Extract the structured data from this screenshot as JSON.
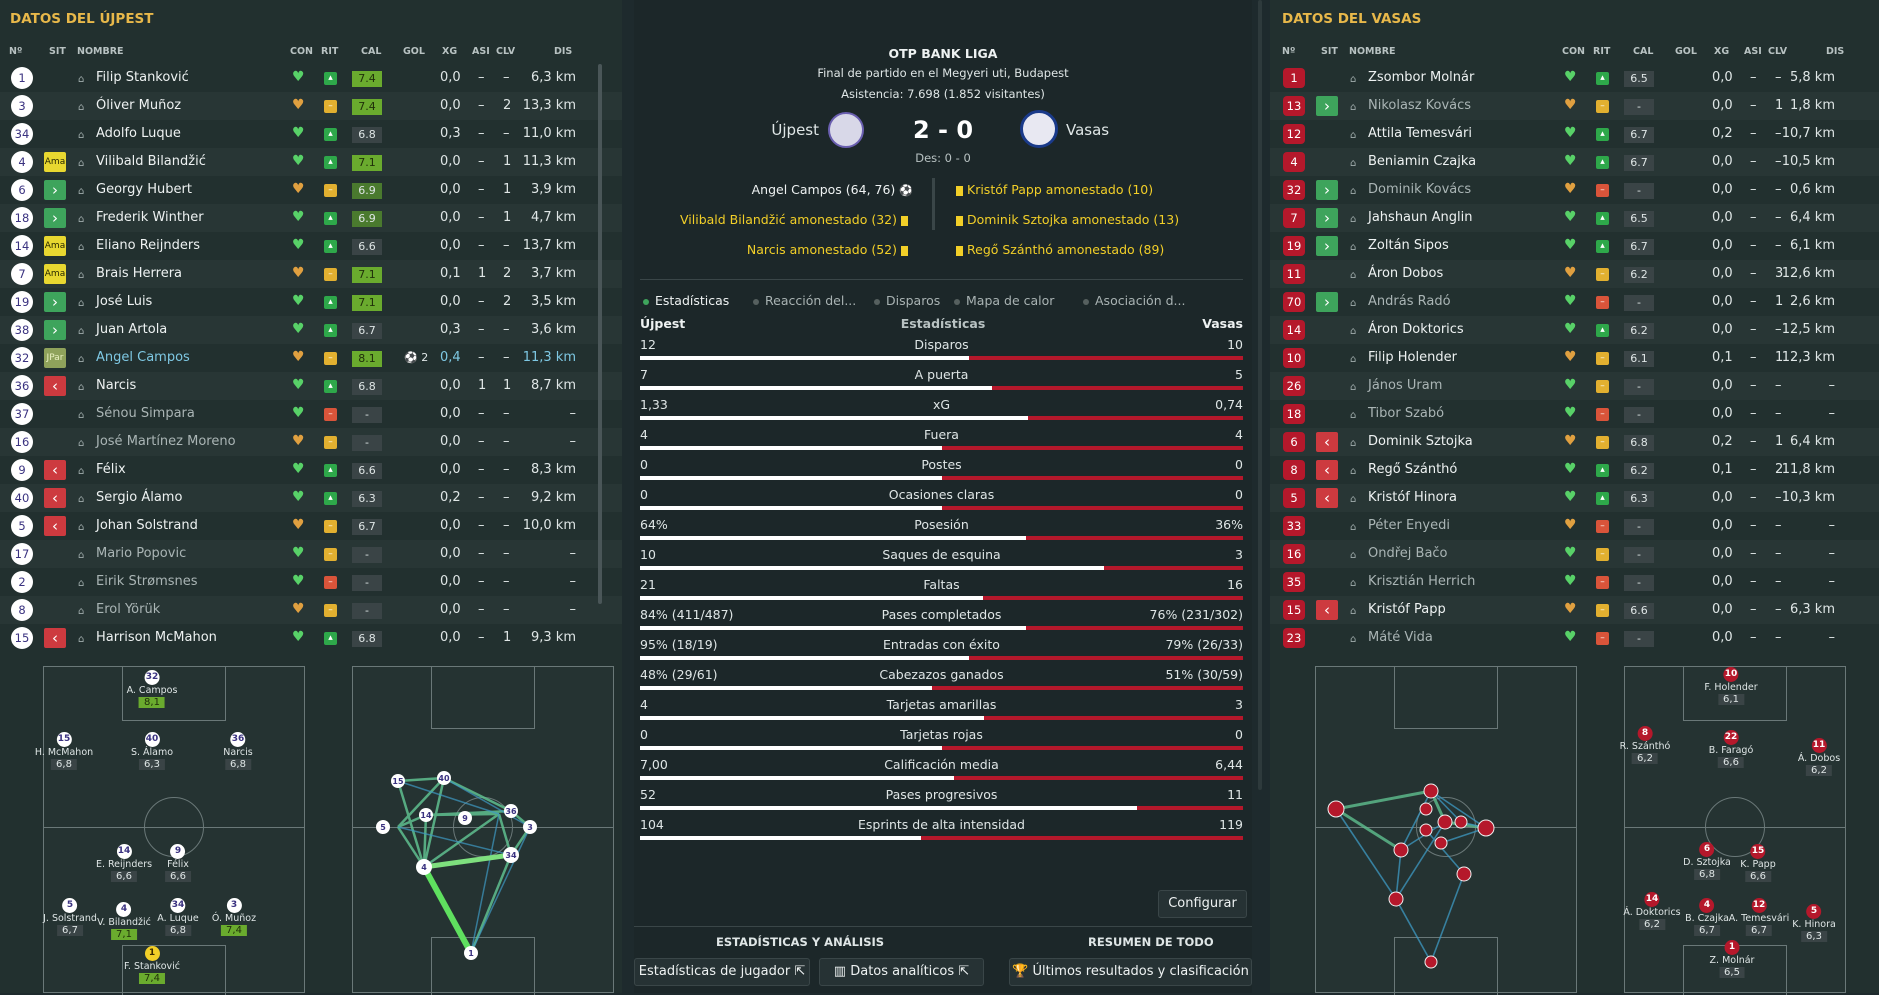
{
  "left": {
    "title": "DATOS DEL ÚJPEST",
    "headers": {
      "n": "Nº",
      "sit": "SIT",
      "nombre": "NOMBRE",
      "con": "CON",
      "rit": "RIT",
      "cal": "CAL",
      "gol": "GOL",
      "xg": "XG",
      "asi": "ASI",
      "clv": "CLV",
      "dis": "DIS"
    },
    "players": [
      {
        "n": "1",
        "sit": "",
        "name": "Filip Stanković",
        "cal": "7.4",
        "gol": "",
        "xg": "0,0",
        "asi": "–",
        "clv": "–",
        "dis": "6,3 km"
      },
      {
        "n": "3",
        "sit": "",
        "name": "Óliver Muñoz",
        "cal": "7.4",
        "gol": "",
        "xg": "0,0",
        "asi": "–",
        "clv": "2",
        "dis": "13,3 km"
      },
      {
        "n": "34",
        "sit": "",
        "name": "Adolfo Luque",
        "cal": "6.8",
        "gol": "",
        "xg": "0,3",
        "asi": "–",
        "clv": "–",
        "dis": "11,0 km"
      },
      {
        "n": "4",
        "sit": "Ama",
        "name": "Vilibald Bilandžić",
        "cal": "7.1",
        "gol": "",
        "xg": "0,0",
        "asi": "–",
        "clv": "1",
        "dis": "11,3 km"
      },
      {
        "n": "6",
        "sit": ">",
        "name": "Georgy Hubert",
        "cal": "6.9",
        "gol": "",
        "xg": "0,0",
        "asi": "–",
        "clv": "1",
        "dis": "3,9 km"
      },
      {
        "n": "18",
        "sit": ">",
        "name": "Frederik Winther",
        "cal": "6.9",
        "gol": "",
        "xg": "0,0",
        "asi": "–",
        "clv": "1",
        "dis": "4,7 km"
      },
      {
        "n": "14",
        "sit": "Ama",
        "name": "Eliano Reijnders",
        "cal": "6.6",
        "gol": "",
        "xg": "0,0",
        "asi": "–",
        "clv": "–",
        "dis": "13,7 km"
      },
      {
        "n": "7",
        "sit": "Ama",
        "name": "Brais Herrera",
        "cal": "7.1",
        "gol": "",
        "xg": "0,1",
        "asi": "1",
        "clv": "2",
        "dis": "3,7 km"
      },
      {
        "n": "19",
        "sit": ">",
        "name": "José Luis",
        "cal": "7.1",
        "gol": "",
        "xg": "0,0",
        "asi": "–",
        "clv": "2",
        "dis": "3,5 km"
      },
      {
        "n": "38",
        "sit": ">",
        "name": "Juan Artola",
        "cal": "6.7",
        "gol": "",
        "xg": "0,3",
        "asi": "–",
        "clv": "–",
        "dis": "3,6 km"
      },
      {
        "n": "32",
        "sit": "JPar",
        "name": "Angel Campos",
        "cal": "8.1",
        "gol": "2",
        "xg": "0,4",
        "asi": "–",
        "clv": "–",
        "dis": "11,3 km"
      },
      {
        "n": "36",
        "sit": "<",
        "name": "Narcis",
        "cal": "6.8",
        "gol": "",
        "xg": "0,0",
        "asi": "1",
        "clv": "1",
        "dis": "8,7 km"
      },
      {
        "n": "37",
        "sit": "",
        "name": "Sénou Simpara",
        "cal": "-",
        "gol": "",
        "xg": "0,0",
        "asi": "–",
        "clv": "–",
        "dis": "–"
      },
      {
        "n": "16",
        "sit": "",
        "name": "José Martínez Moreno",
        "cal": "-",
        "gol": "",
        "xg": "0,0",
        "asi": "–",
        "clv": "–",
        "dis": "–"
      },
      {
        "n": "9",
        "sit": "<",
        "name": "Félix",
        "cal": "6.6",
        "gol": "",
        "xg": "0,0",
        "asi": "–",
        "clv": "–",
        "dis": "8,3 km"
      },
      {
        "n": "40",
        "sit": "<",
        "name": "Sergio Álamo",
        "cal": "6.3",
        "gol": "",
        "xg": "0,2",
        "asi": "–",
        "clv": "–",
        "dis": "9,2 km"
      },
      {
        "n": "5",
        "sit": "<",
        "name": "Johan Solstrand",
        "cal": "6.7",
        "gol": "",
        "xg": "0,0",
        "asi": "–",
        "clv": "–",
        "dis": "10,0 km"
      },
      {
        "n": "17",
        "sit": "",
        "name": "Mario Popovic",
        "cal": "-",
        "gol": "",
        "xg": "0,0",
        "asi": "–",
        "clv": "–",
        "dis": "–"
      },
      {
        "n": "2",
        "sit": "",
        "name": "Eirik Strømsnes",
        "cal": "-",
        "gol": "",
        "xg": "0,0",
        "asi": "–",
        "clv": "–",
        "dis": "–"
      },
      {
        "n": "8",
        "sit": "",
        "name": "Erol Yörük",
        "cal": "-",
        "gol": "",
        "xg": "0,0",
        "asi": "–",
        "clv": "–",
        "dis": "–"
      },
      {
        "n": "15",
        "sit": "<",
        "name": "Harrison McMahon",
        "cal": "6.8",
        "gol": "",
        "xg": "0,0",
        "asi": "–",
        "clv": "1",
        "dis": "9,3 km"
      }
    ],
    "formation": [
      {
        "n": "32",
        "name": "A. Campos",
        "r": "8,1"
      },
      {
        "n": "15",
        "name": "H. McMahon",
        "r": "6,8"
      },
      {
        "n": "40",
        "name": "S. Álamo",
        "r": "6,3"
      },
      {
        "n": "36",
        "name": "Narcis",
        "r": "6,8"
      },
      {
        "n": "14",
        "name": "E. Reijnders",
        "r": "6,6"
      },
      {
        "n": "9",
        "name": "Félix",
        "r": "6,6"
      },
      {
        "n": "5",
        "name": "J. Solstrand",
        "r": "6,7"
      },
      {
        "n": "4",
        "name": "V. Bilandžić",
        "r": "7,1"
      },
      {
        "n": "34",
        "name": "A. Luque",
        "r": "6,8"
      },
      {
        "n": "3",
        "name": "Ó. Muñoz",
        "r": "7,4"
      },
      {
        "n": "1",
        "name": "F. Stanković",
        "r": "7,4"
      }
    ],
    "passmap": [
      "15",
      "40",
      "14",
      "9",
      "36",
      "3",
      "5",
      "34",
      "4",
      "1"
    ]
  },
  "right": {
    "title": "DATOS DEL VASAS",
    "headers": {
      "n": "Nº",
      "sit": "SIT",
      "nombre": "NOMBRE",
      "con": "CON",
      "rit": "RIT",
      "cal": "CAL",
      "gol": "GOL",
      "xg": "XG",
      "asi": "ASI",
      "clv": "CLV",
      "dis": "DIS"
    },
    "players": [
      {
        "n": "1",
        "sit": "",
        "name": "Zsombor Molnár",
        "cal": "6.5",
        "xg": "0,0",
        "asi": "–",
        "clv": "–",
        "dis": "5,8 km"
      },
      {
        "n": "13",
        "sit": ">",
        "name": "Nikolasz Kovács",
        "cal": "-",
        "xg": "0,0",
        "asi": "–",
        "clv": "1",
        "dis": "1,8 km"
      },
      {
        "n": "12",
        "sit": "",
        "name": "Attila Temesvári",
        "cal": "6.7",
        "xg": "0,2",
        "asi": "–",
        "clv": "–",
        "dis": "10,7 km"
      },
      {
        "n": "4",
        "sit": "",
        "name": "Beniamin Czajka",
        "cal": "6.7",
        "xg": "0,0",
        "asi": "–",
        "clv": "–",
        "dis": "10,5 km"
      },
      {
        "n": "32",
        "sit": ">",
        "name": "Dominik Kovács",
        "cal": "-",
        "xg": "0,0",
        "asi": "–",
        "clv": "–",
        "dis": "0,6 km"
      },
      {
        "n": "7",
        "sit": ">",
        "name": "Jahshaun Anglin",
        "cal": "6.5",
        "xg": "0,0",
        "asi": "–",
        "clv": "–",
        "dis": "6,4 km"
      },
      {
        "n": "19",
        "sit": ">",
        "name": "Zoltán Sipos",
        "cal": "6.7",
        "xg": "0,0",
        "asi": "–",
        "clv": "–",
        "dis": "6,1 km"
      },
      {
        "n": "11",
        "sit": "",
        "name": "Áron Dobos",
        "cal": "6.2",
        "xg": "0,0",
        "asi": "–",
        "clv": "3",
        "dis": "12,6 km"
      },
      {
        "n": "70",
        "sit": ">",
        "name": "András Radó",
        "cal": "-",
        "xg": "0,0",
        "asi": "–",
        "clv": "1",
        "dis": "2,6 km"
      },
      {
        "n": "14",
        "sit": "",
        "name": "Áron Doktorics",
        "cal": "6.2",
        "xg": "0,0",
        "asi": "–",
        "clv": "–",
        "dis": "12,5 km"
      },
      {
        "n": "10",
        "sit": "",
        "name": "Filip Holender",
        "cal": "6.1",
        "xg": "0,1",
        "asi": "–",
        "clv": "1",
        "dis": "12,3 km"
      },
      {
        "n": "26",
        "sit": "",
        "name": "János Uram",
        "cal": "-",
        "xg": "0,0",
        "asi": "–",
        "clv": "–",
        "dis": "–"
      },
      {
        "n": "18",
        "sit": "",
        "name": "Tibor Szabó",
        "cal": "-",
        "xg": "0,0",
        "asi": "–",
        "clv": "–",
        "dis": "–"
      },
      {
        "n": "6",
        "sit": "<",
        "name": "Dominik Sztojka",
        "cal": "6.8",
        "xg": "0,2",
        "asi": "–",
        "clv": "1",
        "dis": "6,4 km"
      },
      {
        "n": "8",
        "sit": "<",
        "name": "Regő Szánthó",
        "cal": "6.2",
        "xg": "0,1",
        "asi": "–",
        "clv": "2",
        "dis": "11,8 km"
      },
      {
        "n": "5",
        "sit": "<",
        "name": "Kristóf Hinora",
        "cal": "6.3",
        "xg": "0,0",
        "asi": "–",
        "clv": "–",
        "dis": "10,3 km"
      },
      {
        "n": "33",
        "sit": "",
        "name": "Péter Enyedi",
        "cal": "-",
        "xg": "0,0",
        "asi": "–",
        "clv": "–",
        "dis": "–"
      },
      {
        "n": "16",
        "sit": "",
        "name": "Ondřej Bačo",
        "cal": "-",
        "xg": "0,0",
        "asi": "–",
        "clv": "–",
        "dis": "–"
      },
      {
        "n": "35",
        "sit": "",
        "name": "Krisztián Herrich",
        "cal": "-",
        "xg": "0,0",
        "asi": "–",
        "clv": "–",
        "dis": "–"
      },
      {
        "n": "15",
        "sit": "<",
        "name": "Kristóf Papp",
        "cal": "6.6",
        "xg": "0,0",
        "asi": "–",
        "clv": "–",
        "dis": "6,3 km"
      },
      {
        "n": "23",
        "sit": "",
        "name": "Máté Vida",
        "cal": "-",
        "xg": "0,0",
        "asi": "–",
        "clv": "–",
        "dis": "–"
      }
    ],
    "formation": [
      {
        "n": "10",
        "name": "F. Holender",
        "r": "6,1"
      },
      {
        "n": "8",
        "name": "R. Szánthó",
        "r": "6,2"
      },
      {
        "n": "22",
        "name": "B. Faragó",
        "r": "6,6"
      },
      {
        "n": "11",
        "name": "Á. Dobos",
        "r": "6,2"
      },
      {
        "n": "6",
        "name": "D. Sztojka",
        "r": "6,8"
      },
      {
        "n": "15",
        "name": "K. Papp",
        "r": "6,6"
      },
      {
        "n": "14",
        "name": "Á. Doktorics",
        "r": "6,2"
      },
      {
        "n": "4",
        "name": "B. Czajka",
        "r": "6,7"
      },
      {
        "n": "12",
        "name": "A. Temesvári",
        "r": "6,7"
      },
      {
        "n": "5",
        "name": "K. Hinora",
        "r": "6,3"
      },
      {
        "n": "1",
        "name": "Z. Molnár",
        "r": "6,5"
      }
    ]
  },
  "center": {
    "league": "OTP BANK LIGA",
    "subtitle": "Final de partido en el Megyeri uti, Budapest",
    "attendance": "Asistencia: 7.698 (1.852 visitantes)",
    "home": "Újpest",
    "away": "Vasas",
    "score": "2 - 0",
    "halftime": "Des: 0 - 0",
    "home_events": [
      "Angel Campos (64, 76)",
      "Vilibald Bilandžić amonestado (32)",
      "Narcis amonestado (52)"
    ],
    "away_events": [
      "Kristóf Papp amonestado (10)",
      "Dominik Sztojka amonestado (13)",
      "Regő Szánthó amonestado (89)"
    ],
    "tabs": [
      "Estadísticas",
      "Reacción del...",
      "Disparos",
      "Mapa de calor",
      "Asociación d..."
    ],
    "stats_header": {
      "home": "Újpest",
      "title": "Estadísticas",
      "away": "Vasas"
    },
    "stats": [
      {
        "label": "Disparos",
        "h": "12",
        "a": "10",
        "p": 0.545
      },
      {
        "label": "A puerta",
        "h": "7",
        "a": "5",
        "p": 0.583
      },
      {
        "label": "xG",
        "h": "1,33",
        "a": "0,74",
        "p": 0.643
      },
      {
        "label": "Fuera",
        "h": "4",
        "a": "4",
        "p": 0.5
      },
      {
        "label": "Postes",
        "h": "0",
        "a": "0",
        "p": 0.5
      },
      {
        "label": "Ocasiones claras",
        "h": "0",
        "a": "0",
        "p": 0.5
      },
      {
        "label": "Posesión",
        "h": "64%",
        "a": "36%",
        "p": 0.64
      },
      {
        "label": "Saques de esquina",
        "h": "10",
        "a": "3",
        "p": 0.769
      },
      {
        "label": "Faltas",
        "h": "21",
        "a": "16",
        "p": 0.568
      },
      {
        "label": "Pases completados",
        "h": "84% (411/487)",
        "a": "76% (231/302)",
        "p": 0.64
      },
      {
        "label": "Entradas con éxito",
        "h": "95% (18/19)",
        "a": "79% (26/33)",
        "p": 0.546
      },
      {
        "label": "Cabezazos ganados",
        "h": "48% (29/61)",
        "a": "51% (30/59)",
        "p": 0.485
      },
      {
        "label": "Tarjetas amarillas",
        "h": "4",
        "a": "3",
        "p": 0.571
      },
      {
        "label": "Tarjetas rojas",
        "h": "0",
        "a": "0",
        "p": 0.5
      },
      {
        "label": "Calificación media",
        "h": "7,00",
        "a": "6,44",
        "p": 0.521
      },
      {
        "label": "Pases progresivos",
        "h": "52",
        "a": "11",
        "p": 0.825
      },
      {
        "label": "Esprints de alta intensidad",
        "h": "104",
        "a": "119",
        "p": 0.466
      }
    ],
    "configure": "Configurar",
    "footer": {
      "left_title": "ESTADÍSTICAS Y ANÁLISIS",
      "right_title": "RESUMEN DE TODO",
      "btn1": "Estadísticas de jugador",
      "btn2": "Datos analíticos",
      "btn3": "Últimos resultados y clasificación"
    }
  },
  "colors": {
    "accent": "#e8b84a",
    "home": "#ffffff",
    "away": "#b5182b",
    "good": "#3ea45c"
  }
}
